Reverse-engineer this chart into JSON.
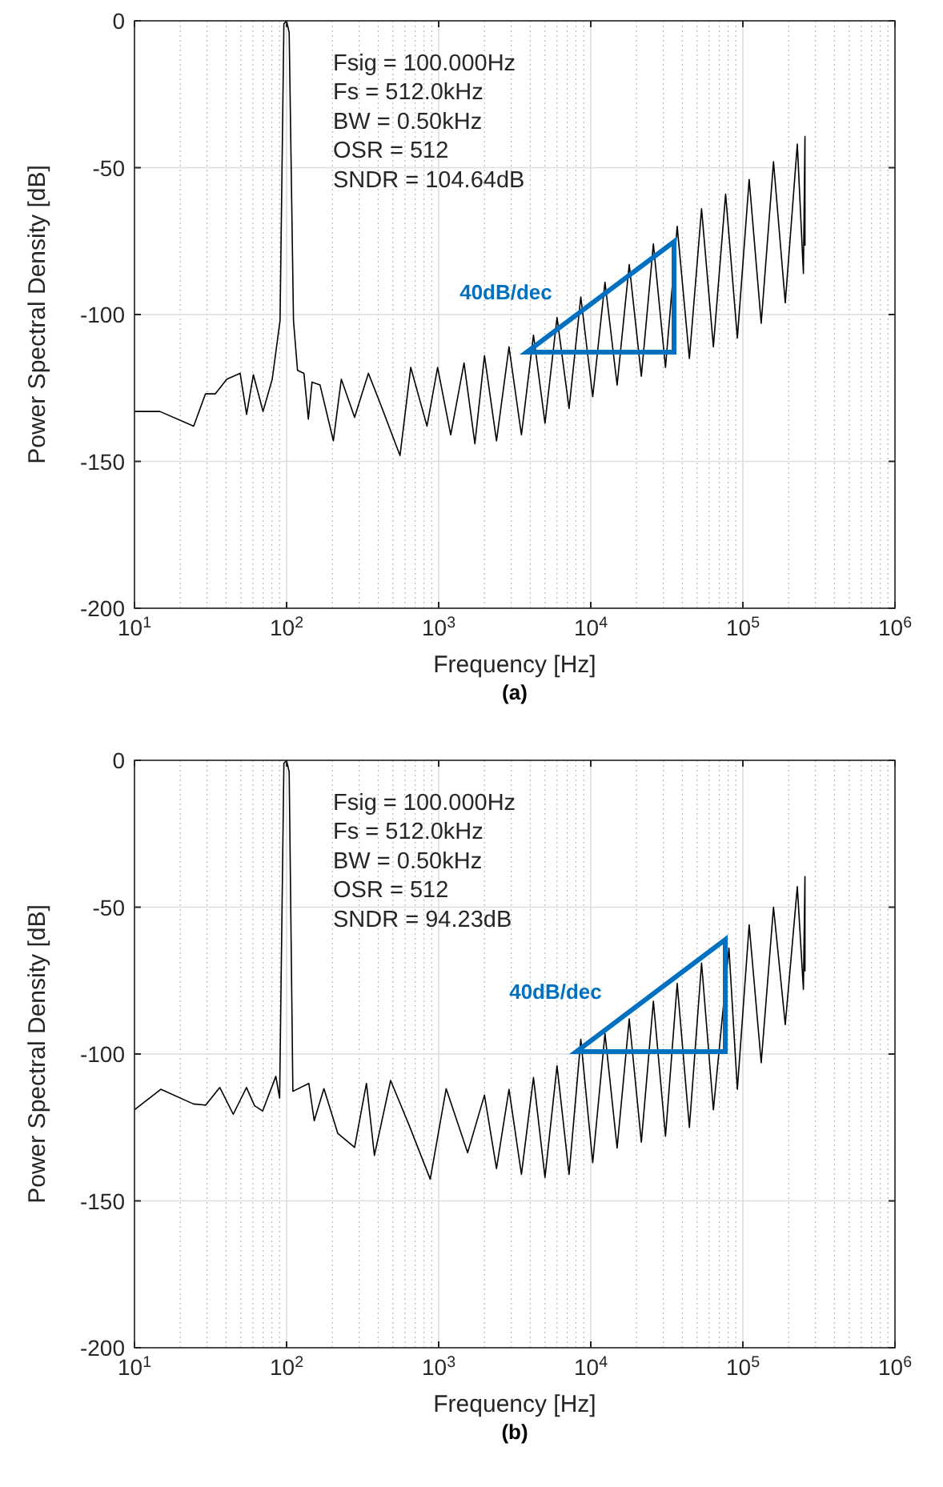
{
  "chart_data": [
    {
      "type": "line",
      "title": "(a)",
      "xlabel": "Frequency [Hz]",
      "ylabel": "Power Spectral Density [dB]",
      "log": "x",
      "grid": true,
      "xlim": [
        10,
        1000000
      ],
      "ylim": [
        -200,
        0
      ],
      "xticks": [
        {
          "value": 10,
          "label": "10$^{1}$"
        },
        {
          "value": 100,
          "label": "10$^{2}$"
        },
        {
          "value": 1000,
          "label": "10$^{3}$"
        },
        {
          "value": 10000,
          "label": "10$^{4}$"
        },
        {
          "value": 100000,
          "label": "10$^{5}$"
        },
        {
          "value": 1000000,
          "label": "10$^{6}$"
        }
      ],
      "yticks": [
        -200,
        -150,
        -100,
        -50,
        0
      ],
      "series": [
        {
          "color": "#000000",
          "x": [
            10,
            14.7,
            24.5,
            29.3,
            34,
            40.5,
            49.5,
            54.6,
            60.5,
            70,
            80.5,
            90.6,
            96,
            100,
            104,
            111,
            118,
            130,
            139,
            147,
            166,
            203,
            229,
            280,
            345,
            404,
            557,
            655,
            838,
            984,
            1200,
            1468,
            1730,
            2000,
            2400,
            2900,
            3500,
            4200,
            5000,
            6000,
            7200,
            8600,
            10300,
            12400,
            14900,
            17900,
            21500,
            25800,
            31000,
            37000,
            44500,
            53500,
            64000,
            77000,
            92000,
            110000,
            132000,
            159000,
            190000,
            228000,
            250000,
            256000,
            256000
          ],
          "values": [
            -133,
            -133,
            -138,
            -127,
            -127,
            -122,
            -120,
            -134,
            -120.5,
            -133,
            -122,
            -102,
            -1,
            0,
            -4,
            -102,
            -119,
            -120,
            -135.6,
            -123,
            -124,
            -143,
            -122,
            -135,
            -120,
            -129,
            -148,
            -118,
            -138,
            -118,
            -141,
            -116.5,
            -144,
            -114,
            -143,
            -111,
            -141,
            -107,
            -137,
            -101,
            -132,
            -94,
            -128,
            -89,
            -124,
            -83,
            -121,
            -76,
            -118,
            -70,
            -115,
            -64,
            -111,
            -59,
            -108,
            -54,
            -103,
            -48,
            -96,
            -42,
            -86,
            -39.4,
            -76.6
          ]
        }
      ],
      "annotations": [
        "Fsig = 100.000Hz",
        "Fs = 512.0kHz",
        "BW = 0.50kHz",
        "OSR = 512",
        "SNDR = 104.64dB",
        "40dB/dec"
      ]
    },
    {
      "type": "line",
      "title": "(b)",
      "xlabel": "Frequency [Hz]",
      "ylabel": "Power Spectral Density [dB]",
      "log": "x",
      "grid": true,
      "xlim": [
        10,
        1000000
      ],
      "ylim": [
        -200,
        0
      ],
      "xticks": [
        {
          "value": 10,
          "label": "10$^{1}$"
        },
        {
          "value": 100,
          "label": "10$^{2}$"
        },
        {
          "value": 1000,
          "label": "10$^{3}$"
        },
        {
          "value": 10000,
          "label": "10$^{4}$"
        },
        {
          "value": 100000,
          "label": "10$^{5}$"
        },
        {
          "value": 1000000,
          "label": "10$^{6}$"
        }
      ],
      "yticks": [
        -200,
        -150,
        -100,
        -50,
        0
      ],
      "series": [
        {
          "color": "#000000",
          "x": [
            10,
            14.9,
            24.4,
            29.4,
            36.4,
            44.6,
            54.5,
            61.6,
            69.6,
            85,
            90,
            96,
            100,
            104,
            110,
            140,
            152,
            176,
            217,
            280,
            335,
            378,
            483,
            642,
            880,
            1120,
            1550,
            2000,
            2400,
            2900,
            3500,
            4200,
            5000,
            6000,
            7200,
            8600,
            10300,
            12400,
            14900,
            17900,
            21500,
            25800,
            31000,
            37000,
            44500,
            53500,
            64000,
            81000,
            92000,
            110000,
            132000,
            159000,
            190000,
            228000,
            250000,
            256000,
            256000
          ],
          "values": [
            -119,
            -112,
            -117,
            -117.4,
            -111.4,
            -120.5,
            -111.4,
            -117.6,
            -119.4,
            -107.6,
            -115,
            -1,
            0,
            -4,
            -112.7,
            -110,
            -122.7,
            -111.8,
            -127,
            -131.8,
            -110,
            -134.5,
            -109,
            -124.5,
            -142.6,
            -111.8,
            -133.6,
            -114,
            -139,
            -112,
            -141,
            -108,
            -142,
            -104,
            -141,
            -95,
            -137,
            -93,
            -132,
            -88,
            -130,
            -82,
            -128,
            -76,
            -125,
            -69,
            -119,
            -64,
            -112,
            -56,
            -103,
            -50,
            -90,
            -43,
            -78,
            -39.6,
            -71.9
          ]
        }
      ],
      "annotations": [
        "Fsig = 100.000Hz",
        "Fs = 512.0kHz",
        "BW = 0.50kHz",
        "OSR = 512",
        "SNDR = 94.23dB",
        "40dB/dec"
      ]
    }
  ]
}
